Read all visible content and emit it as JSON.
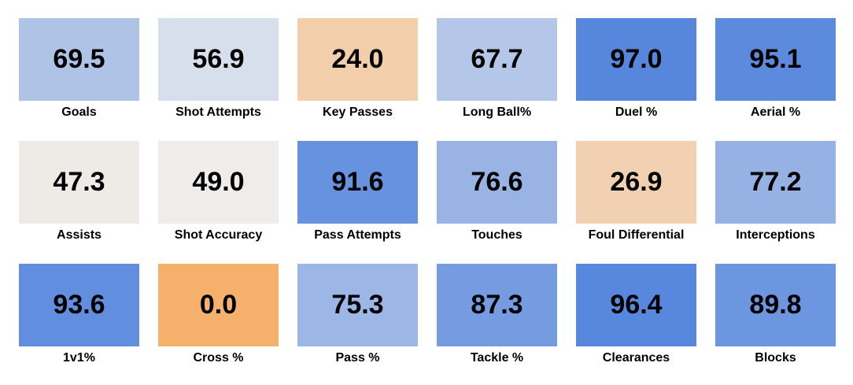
{
  "chart_data": {
    "type": "heatmap",
    "title": "",
    "value_range": [
      0,
      100
    ],
    "colors": {
      "low": "#f5b06b",
      "mid": "#eeeeee",
      "high": "#4c80dc"
    },
    "tiles": [
      {
        "label": "Goals",
        "value": "69.5"
      },
      {
        "label": "Shot Attempts",
        "value": "56.9"
      },
      {
        "label": "Key Passes",
        "value": "24.0"
      },
      {
        "label": "Long Ball%",
        "value": "67.7"
      },
      {
        "label": "Duel %",
        "value": "97.0"
      },
      {
        "label": "Aerial %",
        "value": "95.1"
      },
      {
        "label": "Assists",
        "value": "47.3"
      },
      {
        "label": "Shot Accuracy",
        "value": "49.0"
      },
      {
        "label": "Pass Attempts",
        "value": "91.6"
      },
      {
        "label": "Touches",
        "value": "76.6"
      },
      {
        "label": "Foul Differential",
        "value": "26.9"
      },
      {
        "label": "Interceptions",
        "value": "77.2"
      },
      {
        "label": "1v1%",
        "value": "93.6"
      },
      {
        "label": "Cross %",
        "value": "0.0"
      },
      {
        "label": "Pass %",
        "value": "75.3"
      },
      {
        "label": "Tackle %",
        "value": "87.3"
      },
      {
        "label": "Clearances",
        "value": "96.4"
      },
      {
        "label": "Blocks",
        "value": "89.8"
      }
    ]
  }
}
